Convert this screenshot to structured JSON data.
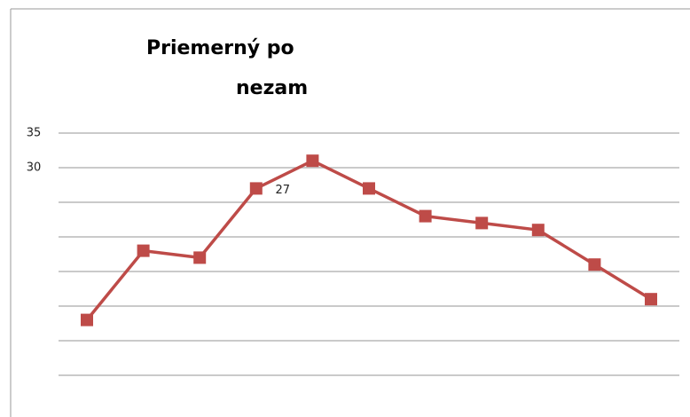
{
  "chart_data": {
    "type": "line",
    "title_lines": [
      "Priemerný po",
      "nezam"
    ],
    "categories": [
      null,
      null,
      null,
      null,
      null,
      null,
      null,
      null,
      null,
      null,
      null
    ],
    "series": [
      {
        "name": null,
        "color": "#be4b48",
        "values": [
          8,
          18,
          17,
          27,
          31,
          27,
          23,
          22,
          21,
          16,
          11
        ],
        "value_labels": [
          null,
          null,
          null,
          "27",
          null,
          null,
          null,
          null,
          null,
          null,
          null
        ]
      }
    ],
    "ylim": [
      0,
      35
    ],
    "yticks": [
      {
        "value": 0,
        "label": null
      },
      {
        "value": 5,
        "label": null
      },
      {
        "value": 10,
        "label": null
      },
      {
        "value": 15,
        "label": null
      },
      {
        "value": 20,
        "label": null
      },
      {
        "value": 25,
        "label": null
      },
      30,
      35
    ],
    "grid": true
  }
}
